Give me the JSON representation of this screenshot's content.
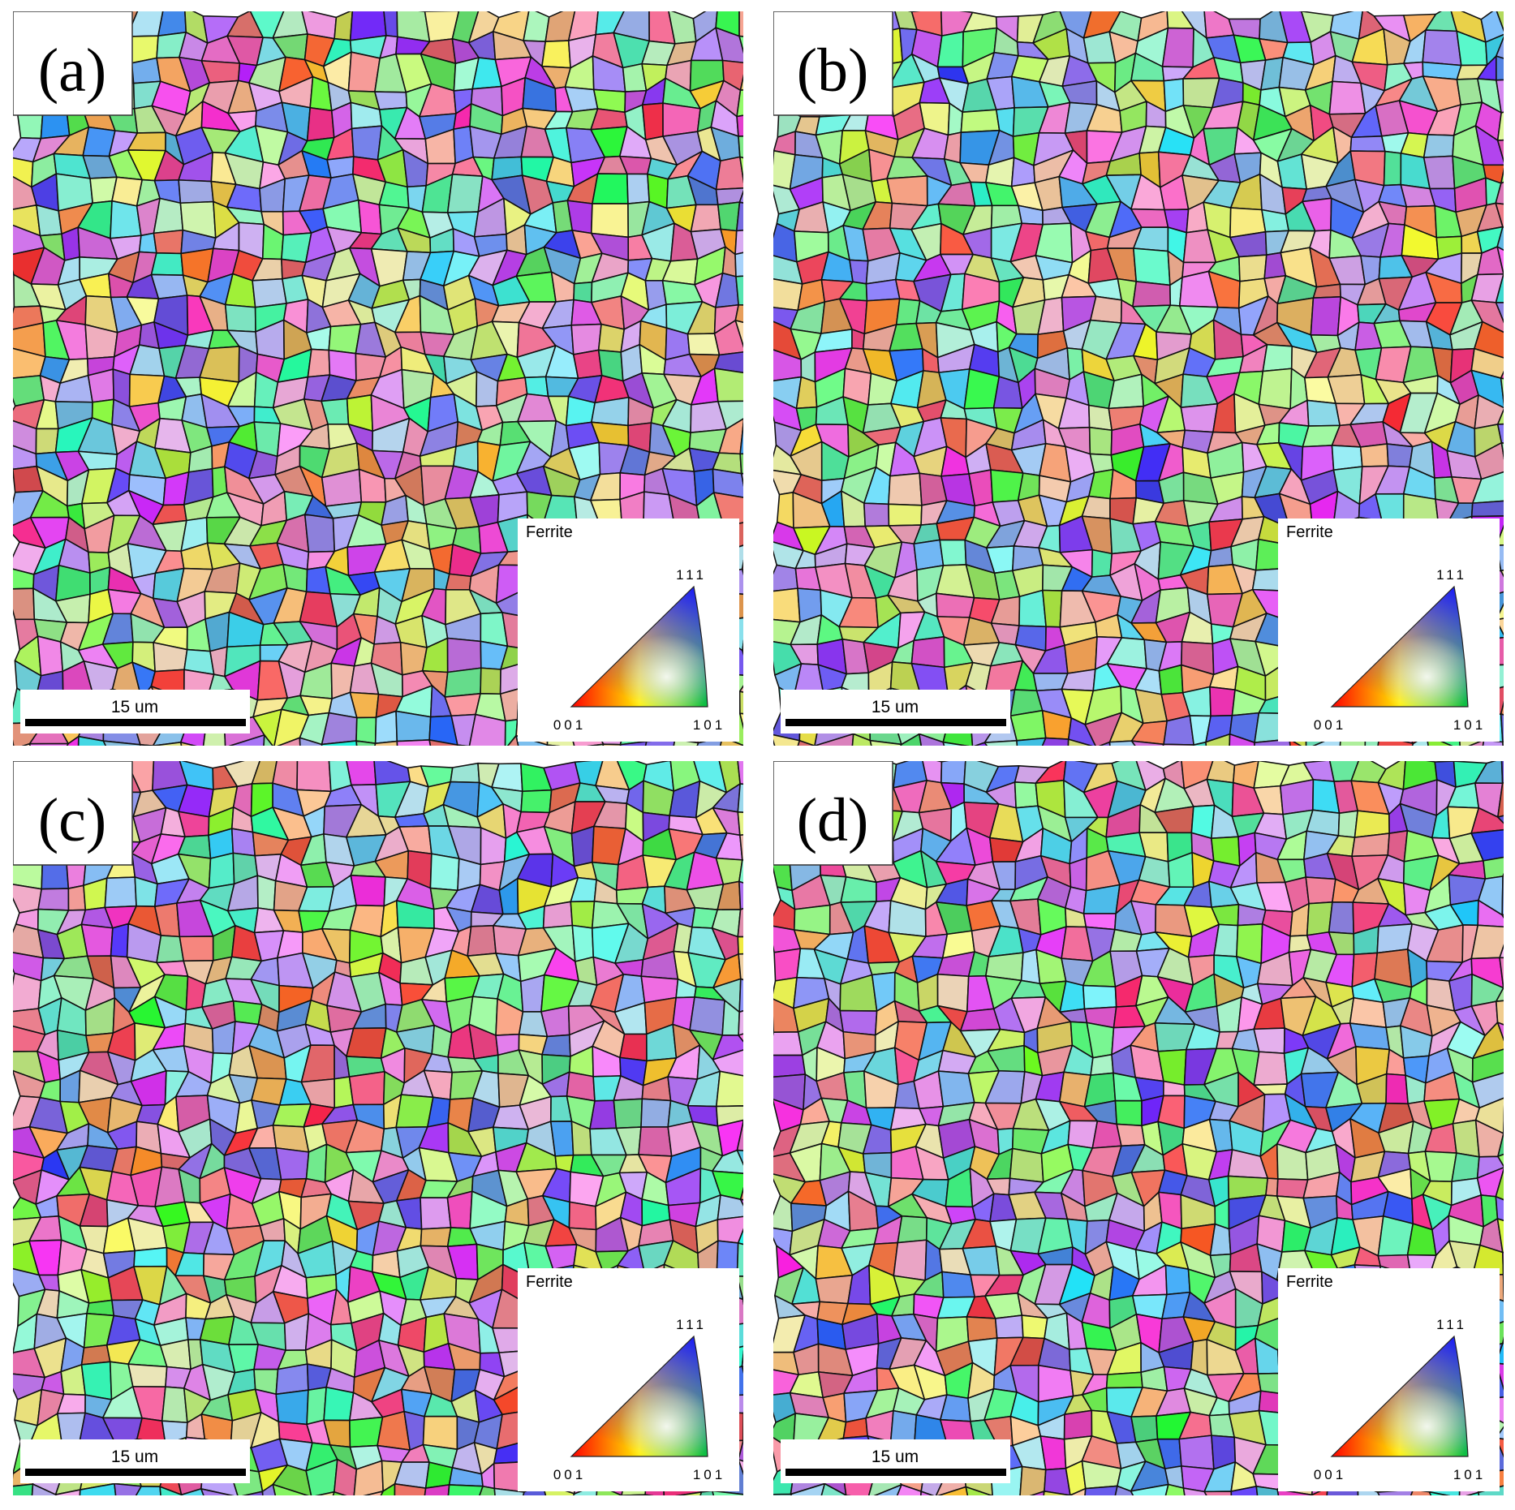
{
  "panels": [
    {
      "label": "(a)",
      "legend": {
        "title": "Ferrite",
        "pole_111": "111",
        "pole_001": "001",
        "pole_101": "101"
      },
      "scale_bar": "15 um"
    },
    {
      "label": "(b)",
      "legend": {
        "title": "Ferrite",
        "pole_111": "111",
        "pole_001": "001",
        "pole_101": "101"
      },
      "scale_bar": "15 um"
    },
    {
      "label": "(c)",
      "legend": {
        "title": "Ferrite",
        "pole_111": "111",
        "pole_001": "001",
        "pole_101": "101"
      },
      "scale_bar": "15 um"
    },
    {
      "label": "(d)",
      "legend": {
        "title": "Ferrite",
        "pole_111": "111",
        "pole_001": "001",
        "pole_101": "101"
      },
      "scale_bar": "15 um"
    }
  ]
}
